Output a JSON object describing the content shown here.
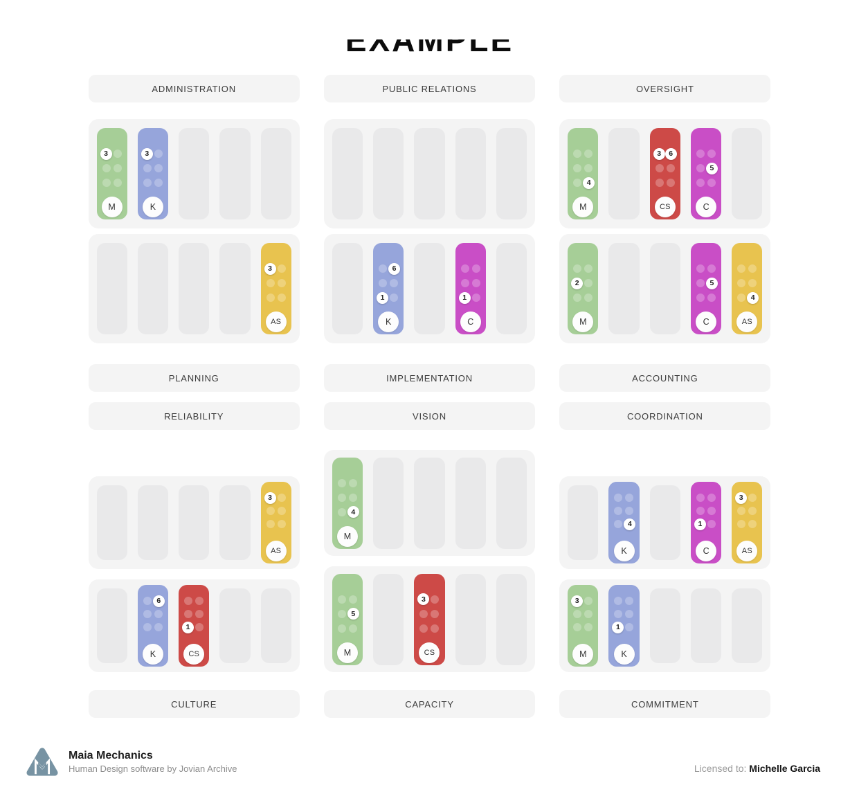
{
  "title": {
    "text": "EXAMPLE"
  },
  "palette": {
    "green": "#a6ce97",
    "blue": "#96a5db",
    "red": "#cd4a47",
    "magenta": "#c94ec6",
    "yellow": "#e8c34f"
  },
  "board": {
    "columns": [
      {
        "top": {
          "header": "ADMINISTRATION",
          "rows": [
            [
              {
                "color": "green",
                "letter": "M",
                "badges": [
                  3
                ]
              },
              {
                "color": "blue",
                "letter": "K",
                "badges": [
                  3
                ]
              },
              null,
              null,
              null
            ],
            [
              null,
              null,
              null,
              null,
              {
                "color": "yellow",
                "letter": "AS",
                "badges": [
                  3
                ]
              }
            ]
          ],
          "footer": "PLANNING"
        },
        "bottom": {
          "header": "RELIABILITY",
          "rows": [
            [
              null,
              null,
              null,
              null,
              {
                "color": "yellow",
                "letter": "AS",
                "badges": [
                  3
                ]
              }
            ],
            [
              null,
              {
                "color": "blue",
                "letter": "K",
                "badges": [
                  6
                ]
              },
              {
                "color": "red",
                "letter": "CS",
                "badges": [
                  1
                ]
              },
              null,
              null
            ]
          ],
          "footer": "CULTURE"
        }
      },
      {
        "top": {
          "header": "PUBLIC RELATIONS",
          "rows": [
            [
              null,
              null,
              null,
              null,
              null
            ],
            [
              null,
              {
                "color": "blue",
                "letter": "K",
                "badges": [
                  6,
                  1
                ]
              },
              null,
              {
                "color": "magenta",
                "letter": "C",
                "badges": [
                  1
                ]
              },
              null
            ]
          ],
          "footer": "IMPLEMENTATION"
        },
        "bottom": {
          "header": "VISION",
          "rows": [
            [
              {
                "color": "green",
                "letter": "M",
                "badges": [
                  4
                ]
              },
              null,
              null,
              null,
              null
            ],
            [
              {
                "color": "green",
                "letter": "M",
                "badges": [
                  5
                ]
              },
              null,
              {
                "color": "red",
                "letter": "CS",
                "badges": [
                  3
                ]
              },
              null,
              null
            ]
          ],
          "footer": "CAPACITY"
        }
      },
      {
        "top": {
          "header": "OVERSIGHT",
          "rows": [
            [
              {
                "color": "green",
                "letter": "M",
                "badges": [
                  4
                ]
              },
              null,
              {
                "color": "red",
                "letter": "CS",
                "badges": [
                  3,
                  6
                ]
              },
              {
                "color": "magenta",
                "letter": "C",
                "badges": [
                  5
                ]
              },
              null
            ],
            [
              {
                "color": "green",
                "letter": "M",
                "badges": [
                  2
                ]
              },
              null,
              null,
              {
                "color": "magenta",
                "letter": "C",
                "badges": [
                  5
                ]
              },
              {
                "color": "yellow",
                "letter": "AS",
                "badges": [
                  4
                ]
              }
            ]
          ],
          "footer": "ACCOUNTING"
        },
        "bottom": {
          "header": "COORDINATION",
          "rows": [
            [
              null,
              {
                "color": "blue",
                "letter": "K",
                "badges": [
                  4
                ]
              },
              null,
              {
                "color": "magenta",
                "letter": "C",
                "badges": [
                  1
                ]
              },
              {
                "color": "yellow",
                "letter": "AS",
                "badges": [
                  3
                ]
              }
            ],
            [
              {
                "color": "green",
                "letter": "M",
                "badges": [
                  3
                ]
              },
              {
                "color": "blue",
                "letter": "K",
                "badges": [
                  1
                ]
              },
              null,
              null,
              null
            ]
          ],
          "footer": "COMMITMENT"
        }
      }
    ]
  },
  "footer": {
    "brand": "Maia Mechanics",
    "tagline": "Human Design software by Jovian Archive",
    "license_label": "Licensed to: ",
    "license_name": "Michelle Garcia",
    "logo_icon": "maia-mechanics-logo",
    "logo_color": "#7793a3"
  }
}
